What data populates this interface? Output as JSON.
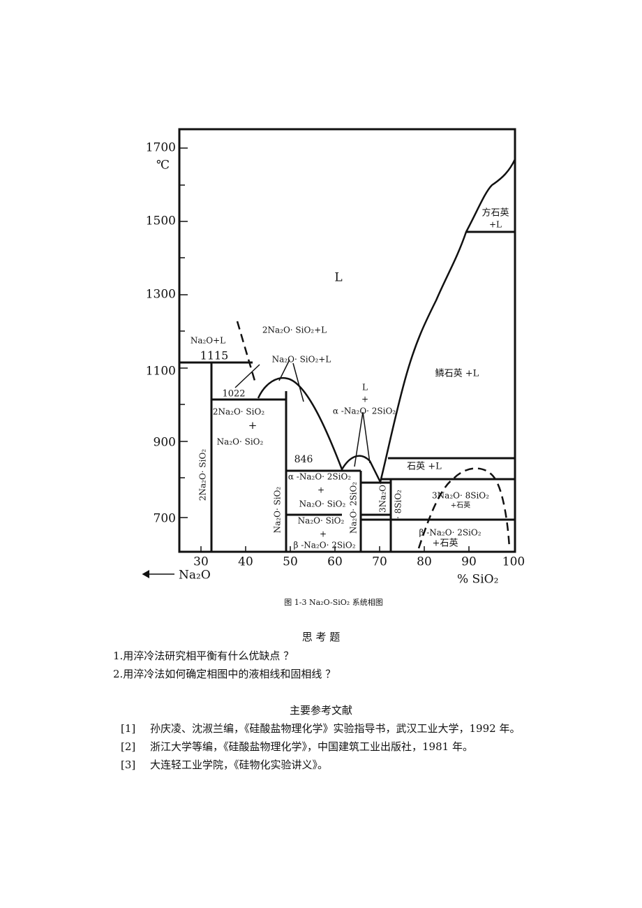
{
  "figure": {
    "y_ticks": [
      "1700",
      "1500",
      "1300",
      "1100",
      "900",
      "700"
    ],
    "y_unit": "℃",
    "x_ticks": [
      "30",
      "40",
      "50",
      "60",
      "70",
      "80",
      "90",
      "100"
    ],
    "x_left_label": "Na₂O",
    "x_right_label": "%  SiO₂",
    "labels": [
      "L",
      "方石英",
      "+L",
      "鳞石英 +L",
      "Na₂O+L",
      "1115",
      "2Na₂O· SiO₂+L",
      "Na₂O· SiO₂+L",
      "1022",
      "2Na₂O· SiO₂",
      "+",
      "Na₂O· SiO₂",
      "2Na₂O· SiO₂",
      "L",
      "+",
      "α -Na₂O· 2SiO₂",
      "846",
      "α -Na₂O· 2SiO₂",
      "+",
      "Na₂O· SiO₂",
      "Na₂O· SiO₂",
      "Na₂O· 2SiO₂",
      "Na₂O· SiO₂",
      "+",
      "β -Na₂O· 2SiO₂",
      "3Na₂O",
      "· 8SiO₂",
      "石英 +L",
      "3Na₂O· 8SiO₂",
      "+石英",
      "β -Na₂O· 2SiO₂",
      "+石英"
    ],
    "caption": "图 1-3    Na₂O-SiO₂ 系统相图"
  },
  "questions": {
    "title": "思  考  题",
    "items": [
      "1.用淬冷法研究相平衡有什么优缺点 ？",
      "2.用淬冷法如何确定相图中的液相线和固相线 ？"
    ]
  },
  "references": {
    "title": "主要参考文献",
    "items": [
      {
        "num": "[1]",
        "text": "孙庆凌、沈淑兰编，《硅酸盐物理化学》实验指导书，武汉工业大学，1992 年。"
      },
      {
        "num": "[2]",
        "text": "浙江大学等编，《硅酸盐物理化学》，中国建筑工业出版社，1981 年。"
      },
      {
        "num": "[3]",
        "text": "大连轻工业学院，《硅物化实验讲义》。"
      }
    ]
  }
}
